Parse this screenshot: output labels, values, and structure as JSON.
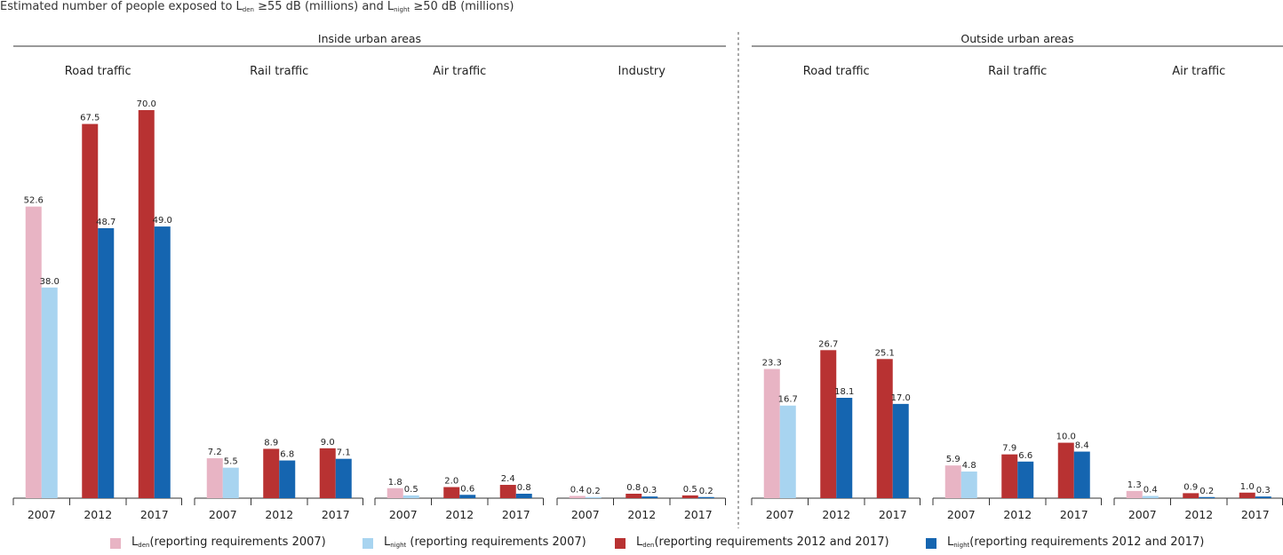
{
  "title": {
    "prefix": "Estimated number of people exposed to L",
    "sub1": "den",
    "middle": " ≥55 dB (millions) and L",
    "sub2": "night",
    "suffix": " ≥50 dB (millions)"
  },
  "colors": {
    "lden_2007": "#e8b4c4",
    "lnight_2007": "#a8d4f0",
    "lden_2012_2017": "#b83232",
    "lnight_2012_2017": "#1565b0"
  },
  "legend": [
    {
      "main": "L",
      "sub": "den",
      "text": "(reporting requirements 2007)",
      "color": "#e8b4c4"
    },
    {
      "main": "L",
      "sub": "night",
      "text": " (reporting requirements 2007)",
      "color": "#a8d4f0"
    },
    {
      "main": "L",
      "sub": "den",
      "text": "(reporting requirements 2012 and 2017)",
      "color": "#b83232"
    },
    {
      "main": "L",
      "sub": "night",
      "text": "(reporting requirements 2012 and 2017)",
      "color": "#1565b0"
    }
  ],
  "chart_data": {
    "type": "bar",
    "ylim": [
      0,
      72
    ],
    "grid": false,
    "legend_position": "bottom",
    "groups": [
      {
        "label": "Inside urban areas",
        "panels": [
          {
            "label": "Road traffic",
            "years": [
              "2007",
              "2012",
              "2017"
            ],
            "lden": [
              52.6,
              67.5,
              70.0
            ],
            "lnight": [
              38.0,
              48.7,
              49.0
            ]
          },
          {
            "label": "Rail traffic",
            "years": [
              "2007",
              "2012",
              "2017"
            ],
            "lden": [
              7.2,
              8.9,
              9.0
            ],
            "lnight": [
              5.5,
              6.8,
              7.1
            ]
          },
          {
            "label": "Air traffic",
            "years": [
              "2007",
              "2012",
              "2017"
            ],
            "lden": [
              1.8,
              2.0,
              2.4
            ],
            "lnight": [
              0.5,
              0.6,
              0.8
            ]
          },
          {
            "label": "Industry",
            "years": [
              "2007",
              "2012",
              "2017"
            ],
            "lden": [
              0.4,
              0.8,
              0.5
            ],
            "lnight": [
              0.2,
              0.3,
              0.2
            ]
          }
        ]
      },
      {
        "label": "Outside urban areas",
        "panels": [
          {
            "label": "Road traffic",
            "years": [
              "2007",
              "2012",
              "2017"
            ],
            "lden": [
              23.3,
              26.7,
              25.1
            ],
            "lnight": [
              16.7,
              18.1,
              17.0
            ]
          },
          {
            "label": "Rail traffic",
            "years": [
              "2007",
              "2012",
              "2017"
            ],
            "lden": [
              5.9,
              7.9,
              10.0
            ],
            "lnight": [
              4.8,
              6.6,
              8.4
            ]
          },
          {
            "label": "Air traffic",
            "years": [
              "2007",
              "2012",
              "2017"
            ],
            "lden": [
              1.3,
              0.9,
              1.0
            ],
            "lnight": [
              0.4,
              0.2,
              0.3
            ]
          }
        ]
      }
    ]
  }
}
